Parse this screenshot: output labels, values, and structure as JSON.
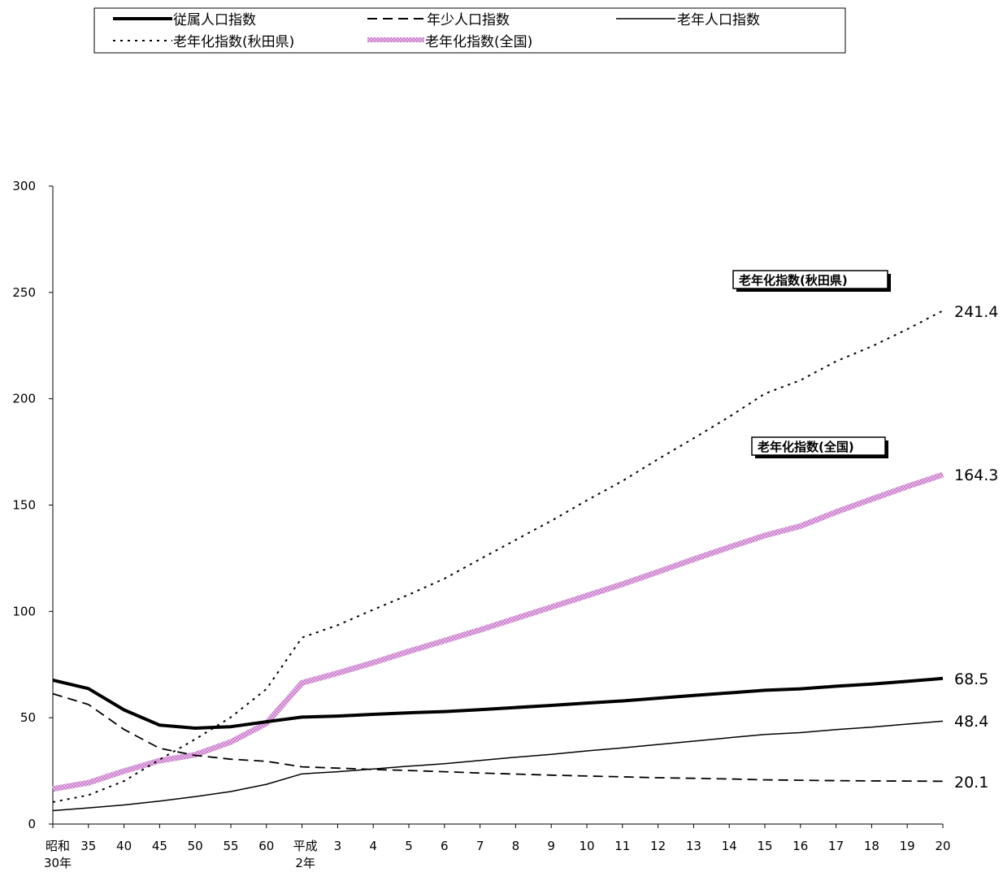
{
  "chart_data": {
    "type": "line",
    "y_ticks": [
      0,
      50,
      100,
      150,
      200,
      250,
      300
    ],
    "ylim": [
      0,
      300
    ],
    "categories": [
      [
        "昭和",
        "30年"
      ],
      [
        "35"
      ],
      [
        "40"
      ],
      [
        "45"
      ],
      [
        "50"
      ],
      [
        "55"
      ],
      [
        "60"
      ],
      [
        "平成",
        "2年"
      ],
      [
        "3"
      ],
      [
        "4"
      ],
      [
        "5"
      ],
      [
        "6"
      ],
      [
        "7"
      ],
      [
        "8"
      ],
      [
        "9"
      ],
      [
        "10"
      ],
      [
        "11"
      ],
      [
        "12"
      ],
      [
        "13"
      ],
      [
        "14"
      ],
      [
        "15"
      ],
      [
        "16"
      ],
      [
        "17"
      ],
      [
        "18"
      ],
      [
        "19"
      ],
      [
        "20"
      ]
    ],
    "series": [
      {
        "name": "従属人口指数",
        "style": "thick",
        "color": "#000000",
        "values": [
          67.7,
          63.7,
          53.7,
          46.5,
          45.1,
          45.8,
          48.1,
          50.3,
          50.8,
          51.6,
          52.3,
          52.9,
          53.8,
          54.8,
          55.8,
          56.9,
          57.9,
          59.2,
          60.5,
          61.7,
          62.9,
          63.6,
          64.8,
          65.8,
          67.1,
          68.5
        ]
      },
      {
        "name": "年少人口指数",
        "style": "dashed",
        "color": "#000000",
        "values": [
          61.3,
          56.2,
          44.5,
          35.6,
          32.3,
          30.5,
          29.5,
          26.9,
          26.3,
          25.7,
          25.2,
          24.6,
          24.0,
          23.5,
          23.0,
          22.6,
          22.2,
          21.8,
          21.5,
          21.2,
          20.8,
          20.6,
          20.4,
          20.3,
          20.2,
          20.1
        ]
      },
      {
        "name": "老年人口指数",
        "style": "thin",
        "color": "#000000",
        "values": [
          6.3,
          7.6,
          9.0,
          10.8,
          12.9,
          15.3,
          18.7,
          23.6,
          24.6,
          25.9,
          27.2,
          28.4,
          29.9,
          31.4,
          32.8,
          34.4,
          35.8,
          37.4,
          39.0,
          40.6,
          42.1,
          43.0,
          44.4,
          45.6,
          47.0,
          48.4
        ]
      },
      {
        "name": "老年化指数(秋田県)",
        "style": "dotted",
        "color": "#000000",
        "values": [
          10.3,
          13.6,
          20.2,
          30.3,
          39.9,
          50.2,
          63.5,
          87.7,
          93.5,
          100.8,
          107.9,
          115.4,
          124.6,
          133.6,
          142.6,
          152.2,
          161.3,
          171.6,
          181.4,
          191.5,
          202.4,
          208.7,
          217.6,
          224.6,
          232.7,
          241.4
        ]
      },
      {
        "name": "老年化指数(全国)",
        "style": "pink",
        "color": "#c77dc9",
        "values": [
          16.5,
          19.4,
          24.9,
          29.8,
          32.6,
          38.6,
          47.4,
          66.4,
          71.0,
          75.9,
          81.2,
          86.2,
          91.3,
          96.7,
          102.0,
          107.4,
          112.8,
          118.6,
          124.5,
          130.2,
          135.7,
          140.1,
          146.7,
          152.8,
          158.7,
          164.3
        ]
      }
    ],
    "end_labels": [
      "241.4",
      "164.3",
      "68.5",
      "48.4",
      "20.1"
    ],
    "annotations": {
      "akita": "老年化指数(秋田県)",
      "national": "老年化指数(全国)"
    },
    "legend_position": "top"
  }
}
